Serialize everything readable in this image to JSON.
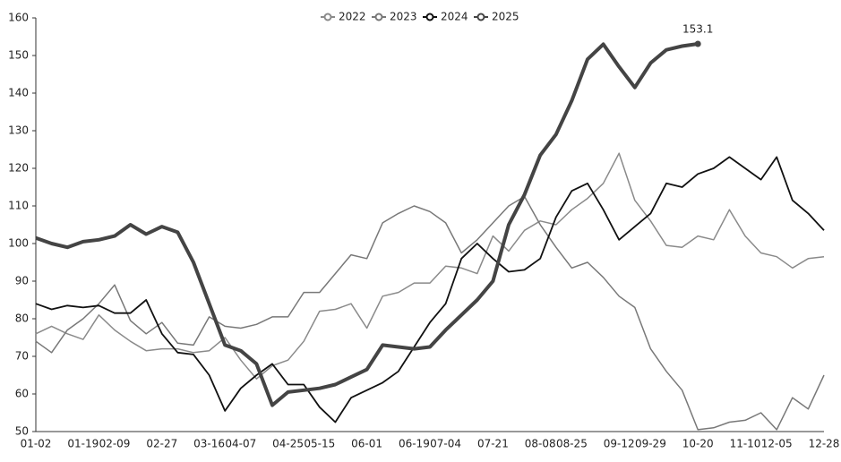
{
  "chart_data": {
    "type": "line",
    "categories": [
      "01-02",
      null,
      null,
      "01-19",
      null,
      "02-09",
      null,
      null,
      "02-27",
      null,
      null,
      "03-16",
      null,
      "04-07",
      null,
      null,
      "04-25",
      null,
      "05-15",
      null,
      null,
      "06-01",
      null,
      null,
      "06-19",
      null,
      "07-04",
      null,
      null,
      "07-21",
      null,
      null,
      "08-08",
      null,
      "08-25",
      null,
      null,
      "09-12",
      null,
      "09-29",
      null,
      null,
      "10-20",
      null,
      null,
      "11-10",
      null,
      "12-05",
      null,
      null,
      "12-28"
    ],
    "series": [
      {
        "name": "2022",
        "color": "#8a8a8a",
        "values": [
          76,
          78,
          76,
          74.5,
          81,
          77,
          74,
          71.5,
          72,
          72,
          71,
          71.5,
          75,
          69,
          64,
          67.5,
          69,
          74,
          82,
          82.5,
          84,
          77.5,
          86,
          87,
          89.5,
          89.5,
          94,
          93.5,
          92,
          102,
          98,
          103.5,
          106,
          105,
          109,
          112,
          116,
          124,
          111.5,
          106,
          99.5,
          99,
          102,
          101,
          109,
          102,
          97.5,
          96.5,
          93.5,
          96,
          96.5
        ]
      },
      {
        "name": "2023",
        "color": "#787878",
        "values": [
          74,
          71,
          77,
          80,
          84,
          89,
          79.5,
          76,
          79,
          73.5,
          73,
          80.5,
          78,
          77.5,
          78.5,
          80.5,
          80.5,
          87,
          87,
          92,
          97,
          96,
          105.5,
          108,
          110,
          108.5,
          105.5,
          97.5,
          101,
          105.5,
          110,
          112.5,
          105,
          99,
          93.5,
          95,
          91,
          86,
          83,
          72,
          66,
          61,
          50.5,
          51,
          52.5,
          53,
          55,
          50.5,
          59,
          56,
          65
        ]
      },
      {
        "name": "2024",
        "color": "#111111",
        "values": [
          84,
          82.5,
          83.5,
          83,
          83.5,
          81.5,
          81.5,
          85,
          76,
          71,
          70.5,
          65,
          55.5,
          61.5,
          65,
          68,
          62.5,
          62.5,
          56.5,
          52.5,
          59,
          61,
          63,
          66,
          72.5,
          79,
          84,
          96,
          100,
          96,
          92.5,
          93,
          96,
          107,
          114,
          116,
          109,
          101,
          104.5,
          108,
          116,
          115,
          118.5,
          120,
          123,
          120,
          117,
          123,
          111.5,
          108,
          103.5
        ]
      },
      {
        "name": "2025",
        "color": "#444444",
        "values": [
          101.5,
          100,
          99,
          100.5,
          101,
          102,
          105,
          102.5,
          104.5,
          103,
          95,
          84,
          73,
          71.5,
          68,
          57,
          60.5,
          61,
          61.5,
          62.5,
          64.5,
          66.5,
          73,
          72.5,
          72,
          72.5,
          77,
          81,
          85,
          90,
          105,
          113,
          123.5,
          129,
          138,
          149,
          153,
          147,
          141.5,
          148,
          151.5,
          152.5,
          153.1,
          null,
          null,
          null,
          null,
          null,
          null,
          null,
          null
        ]
      }
    ],
    "ylim": [
      50,
      160
    ],
    "yticks": [
      50,
      60,
      70,
      80,
      90,
      100,
      110,
      120,
      130,
      140,
      150,
      160
    ],
    "legend": "top"
  }
}
